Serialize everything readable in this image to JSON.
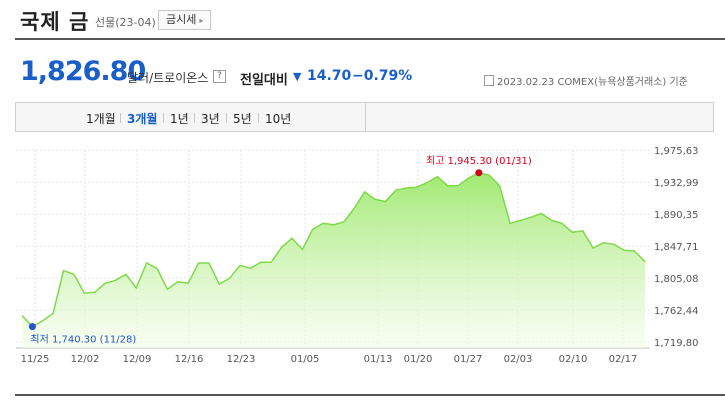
{
  "header": {
    "title": "국제 금",
    "subtitle": "선물(23-04)",
    "link_label": "금시세"
  },
  "quote": {
    "price": "1,826.80",
    "unit": "달러/트로이온스",
    "help_icon": "?",
    "change_label": "전일대비",
    "change_direction_symbol": "▼",
    "change_value": "14.70",
    "change_percent": "−0.79%",
    "date": "2023.02.23",
    "source": "COMEX(뉴욕상품거래소) 기준"
  },
  "tabs": [
    {
      "label": "1개월",
      "active": false
    },
    {
      "label": "3개월",
      "active": true
    },
    {
      "label": "1년",
      "active": false
    },
    {
      "label": "3년",
      "active": false
    },
    {
      "label": "5년",
      "active": false
    },
    {
      "label": "10년",
      "active": false
    }
  ],
  "colors": {
    "accent_blue": "#1a5fc9",
    "line_green": "#7fd94a",
    "high_red": "#d0021b",
    "low_blue": "#2255cc"
  },
  "chart_data": {
    "type": "area",
    "x_ticks": [
      "11/25",
      "12/02",
      "12/09",
      "12/16",
      "12/23",
      "01/05",
      "01/13",
      "01/20",
      "01/27",
      "02/03",
      "02/10",
      "02/17"
    ],
    "y_ticks": [
      "1,975,63",
      "1,932,99",
      "1,890,35",
      "1,847,71",
      "1,805,08",
      "1,762,44",
      "1,719,80"
    ],
    "ylim": [
      1719.8,
      1975.63
    ],
    "values": [
      1755,
      1740.3,
      1748,
      1758,
      1815,
      1810,
      1785,
      1786,
      1798,
      1802,
      1810,
      1792,
      1825,
      1818,
      1790,
      1800,
      1798,
      1825,
      1825,
      1797,
      1805,
      1822,
      1818,
      1826,
      1826,
      1846,
      1858,
      1843,
      1870,
      1878,
      1876,
      1880,
      1898,
      1920,
      1910,
      1907,
      1922,
      1925,
      1926,
      1932,
      1940,
      1928,
      1928,
      1938,
      1945.3,
      1942,
      1928,
      1878,
      1882,
      1886,
      1891,
      1882,
      1878,
      1866,
      1868,
      1845,
      1852,
      1850,
      1842,
      1841,
      1826.8
    ],
    "high_label": "최고 1,945.30 (01/31)",
    "low_label": "최저 1,740.30 (11/28)",
    "high_index": 44,
    "low_index": 1
  }
}
